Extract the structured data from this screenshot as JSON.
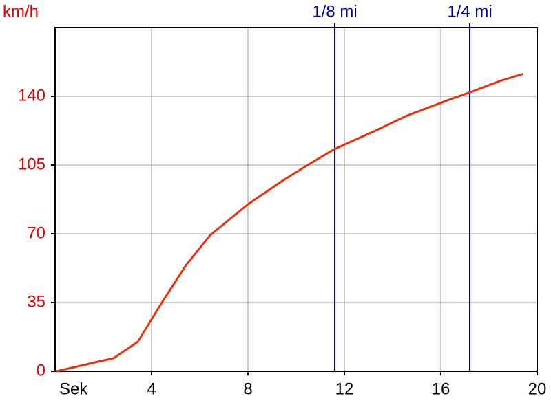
{
  "chart_data": {
    "type": "line",
    "x_label": "Sek",
    "y_label": "km/h",
    "x": [
      0.05,
      2.43,
      3.43,
      4.43,
      5.43,
      6.43,
      8,
      9.43,
      10.57,
      11.57,
      12.29,
      13.29,
      14.57,
      16.29,
      17.43,
      18.43,
      19.43
    ],
    "values": [
      0,
      6.7,
      15,
      35,
      54,
      69.3,
      85,
      97,
      105.7,
      113,
      117,
      122.5,
      130,
      138,
      143,
      147.7,
      151.5
    ],
    "color": "#e8300a",
    "xlim": [
      0,
      20
    ],
    "xticks": [
      4,
      8,
      12,
      16,
      20
    ],
    "ylim": [
      0,
      175
    ],
    "yticks": [
      0,
      35,
      70,
      105,
      140
    ],
    "grid": true,
    "markers": [
      {
        "label": "1/8 mi",
        "x": 11.6
      },
      {
        "label": "1/4 mi",
        "x": 17.2
      }
    ],
    "marker_color": "#0000a0",
    "label_color": "#e00000"
  }
}
